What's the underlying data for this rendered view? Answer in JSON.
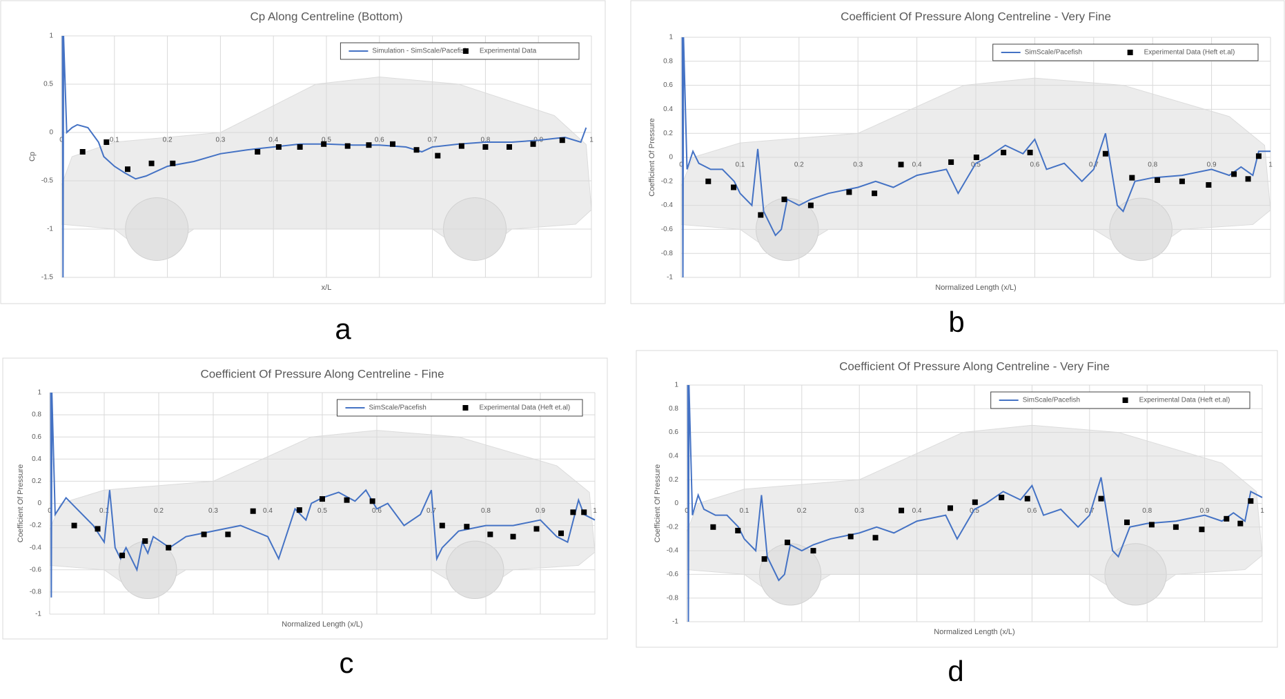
{
  "chart_data": [
    {
      "type": "line",
      "label": "a",
      "title": "Cp Along Centreline (Bottom)",
      "x_label": "x/L",
      "y_label": "Cp",
      "xlim": [
        0,
        1
      ],
      "xticks": [
        0,
        0.1,
        0.2,
        0.3,
        0.4,
        0.5,
        0.6,
        0.7,
        0.8,
        0.9,
        1
      ],
      "ylim": [
        -1.5,
        1
      ],
      "yticks": [
        -1.5,
        -1,
        -0.5,
        0,
        0.5,
        1
      ],
      "grid": true,
      "legend": "upper right",
      "series": [
        {
          "name": "Simulation - SimScale/Pacefish",
          "style": "line",
          "color": "#4472c4",
          "x": [
            0.002,
            0.003,
            0.004,
            0.01,
            0.02,
            0.03,
            0.05,
            0.07,
            0.08,
            0.1,
            0.12,
            0.14,
            0.16,
            0.2,
            0.25,
            0.3,
            0.35,
            0.4,
            0.45,
            0.5,
            0.55,
            0.6,
            0.65,
            0.68,
            0.7,
            0.75,
            0.8,
            0.85,
            0.9,
            0.95,
            0.98,
            0.99
          ],
          "values": [
            1,
            -1.5,
            1,
            0,
            0.05,
            0.08,
            0.05,
            -0.1,
            -0.25,
            -0.35,
            -0.42,
            -0.48,
            -0.45,
            -0.35,
            -0.3,
            -0.22,
            -0.18,
            -0.15,
            -0.12,
            -0.12,
            -0.13,
            -0.13,
            -0.15,
            -0.2,
            -0.15,
            -0.12,
            -0.1,
            -0.1,
            -0.08,
            -0.05,
            -0.1,
            0.05
          ]
        },
        {
          "name": "Experimental Data",
          "style": "marker",
          "color": "#000000",
          "x": [
            0.04,
            0.085,
            0.125,
            0.17,
            0.21,
            0.37,
            0.41,
            0.45,
            0.495,
            0.54,
            0.58,
            0.625,
            0.67,
            0.71,
            0.755,
            0.8,
            0.845,
            0.89,
            0.945
          ],
          "values": [
            -0.2,
            -0.1,
            -0.38,
            -0.32,
            -0.32,
            -0.2,
            -0.15,
            -0.15,
            -0.12,
            -0.14,
            -0.13,
            -0.12,
            -0.18,
            -0.24,
            -0.14,
            -0.15,
            -0.15,
            -0.12,
            -0.08
          ]
        }
      ]
    },
    {
      "type": "line",
      "label": "b",
      "title": "Coefficient Of Pressure Along Centreline - Very Fine",
      "x_label": "Normalized Length  (x/L)",
      "y_label": "Coefficient Of Pressure",
      "xlim": [
        0,
        1
      ],
      "xticks": [
        0,
        0.1,
        0.2,
        0.3,
        0.4,
        0.5,
        0.6,
        0.7,
        0.8,
        0.9,
        1
      ],
      "ylim": [
        -1,
        1
      ],
      "yticks": [
        -1,
        -0.8,
        -0.6,
        -0.4,
        -0.2,
        0,
        0.2,
        0.4,
        0.6,
        0.8,
        1
      ],
      "grid": true,
      "legend": "upper right",
      "series": [
        {
          "name": "SimScale/Pacefish",
          "style": "line",
          "color": "#4472c4",
          "x": [
            0.002,
            0.003,
            0.004,
            0.01,
            0.02,
            0.03,
            0.05,
            0.07,
            0.09,
            0.1,
            0.12,
            0.13,
            0.14,
            0.16,
            0.17,
            0.18,
            0.2,
            0.22,
            0.25,
            0.3,
            0.33,
            0.36,
            0.4,
            0.45,
            0.47,
            0.5,
            0.52,
            0.55,
            0.58,
            0.6,
            0.62,
            0.65,
            0.68,
            0.7,
            0.72,
            0.74,
            0.75,
            0.77,
            0.8,
            0.85,
            0.9,
            0.93,
            0.95,
            0.97,
            0.98,
            1
          ],
          "values": [
            1,
            -1,
            1,
            -0.1,
            0.05,
            -0.05,
            -0.1,
            -0.1,
            -0.2,
            -0.3,
            -0.4,
            0.07,
            -0.45,
            -0.65,
            -0.6,
            -0.35,
            -0.4,
            -0.35,
            -0.3,
            -0.25,
            -0.2,
            -0.25,
            -0.15,
            -0.1,
            -0.3,
            -0.05,
            0,
            0.1,
            0.03,
            0.15,
            -0.1,
            -0.05,
            -0.2,
            -0.1,
            0.2,
            -0.4,
            -0.45,
            -0.2,
            -0.17,
            -0.15,
            -0.1,
            -0.15,
            -0.08,
            -0.15,
            0.05,
            0.05
          ]
        },
        {
          "name": "Experimental Data (Heft et.al)",
          "style": "marker",
          "color": "#000000",
          "x": [
            0.046,
            0.089,
            0.135,
            0.175,
            0.22,
            0.285,
            0.328,
            0.373,
            0.458,
            0.501,
            0.547,
            0.592,
            0.72,
            0.765,
            0.808,
            0.85,
            0.895,
            0.938,
            0.962,
            0.98
          ],
          "values": [
            -0.2,
            -0.25,
            -0.48,
            -0.35,
            -0.4,
            -0.29,
            -0.3,
            -0.06,
            -0.04,
            0,
            0.04,
            0.04,
            0.03,
            -0.17,
            -0.19,
            -0.2,
            -0.23,
            -0.14,
            -0.18,
            0.01
          ]
        }
      ]
    },
    {
      "type": "line",
      "label": "c",
      "title": "Coefficient Of Pressure Along Centreline - Fine",
      "x_label": "Normalized Length  (x/L)",
      "y_label": "Coefficient Of Pressure",
      "xlim": [
        0,
        1
      ],
      "xticks": [
        0,
        0.1,
        0.2,
        0.3,
        0.4,
        0.5,
        0.6,
        0.7,
        0.8,
        0.9,
        1
      ],
      "ylim": [
        -1,
        1
      ],
      "yticks": [
        -1,
        -0.8,
        -0.6,
        -0.4,
        -0.2,
        0,
        0.2,
        0.4,
        0.6,
        0.8,
        1
      ],
      "grid": true,
      "legend": "upper right",
      "series": [
        {
          "name": "SimScale/Pacefish",
          "style": "line",
          "color": "#4472c4",
          "x": [
            0.002,
            0.003,
            0.004,
            0.01,
            0.03,
            0.05,
            0.08,
            0.1,
            0.11,
            0.12,
            0.13,
            0.14,
            0.16,
            0.17,
            0.18,
            0.19,
            0.22,
            0.25,
            0.3,
            0.35,
            0.4,
            0.42,
            0.45,
            0.47,
            0.48,
            0.5,
            0.53,
            0.56,
            0.58,
            0.6,
            0.62,
            0.65,
            0.68,
            0.7,
            0.71,
            0.72,
            0.75,
            0.8,
            0.85,
            0.9,
            0.93,
            0.95,
            0.97,
            0.98,
            1
          ],
          "values": [
            1,
            -0.85,
            1,
            -0.1,
            0.05,
            -0.05,
            -0.2,
            -0.35,
            0.12,
            -0.4,
            -0.5,
            -0.4,
            -0.6,
            -0.35,
            -0.45,
            -0.3,
            -0.4,
            -0.3,
            -0.25,
            -0.2,
            -0.3,
            -0.5,
            -0.05,
            -0.15,
            0,
            0.05,
            0.1,
            0.02,
            0.12,
            -0.05,
            0,
            -0.2,
            -0.1,
            0.12,
            -0.5,
            -0.4,
            -0.25,
            -0.2,
            -0.2,
            -0.15,
            -0.3,
            -0.35,
            0.03,
            -0.1,
            -0.15
          ]
        },
        {
          "name": "Experimental Data (Heft et.al)",
          "style": "marker",
          "color": "#000000",
          "x": [
            0.045,
            0.088,
            0.133,
            0.175,
            0.218,
            0.283,
            0.327,
            0.373,
            0.458,
            0.5,
            0.545,
            0.592,
            0.72,
            0.765,
            0.808,
            0.85,
            0.893,
            0.938,
            0.96,
            0.98
          ],
          "values": [
            -0.2,
            -0.23,
            -0.47,
            -0.34,
            -0.4,
            -0.28,
            -0.28,
            -0.07,
            -0.06,
            0.04,
            0.03,
            0.02,
            -0.2,
            -0.21,
            -0.28,
            -0.3,
            -0.23,
            -0.27,
            -0.08,
            -0.08
          ]
        }
      ]
    },
    {
      "type": "line",
      "label": "d",
      "title": "Coefficient Of Pressure Along Centreline - Very Fine",
      "x_label": "Normalized Length  (x/L)",
      "y_label": "Coefficient Of Pressure",
      "xlim": [
        0,
        1
      ],
      "xticks": [
        0,
        0.1,
        0.2,
        0.3,
        0.4,
        0.5,
        0.6,
        0.7,
        0.8,
        0.9,
        1
      ],
      "ylim": [
        -1,
        1
      ],
      "yticks": [
        -1,
        -0.8,
        -0.6,
        -0.4,
        -0.2,
        0,
        0.2,
        0.4,
        0.6,
        0.8,
        1
      ],
      "grid": true,
      "legend": "upper right",
      "series": [
        {
          "name": "SimScale/Pacefish",
          "style": "line",
          "color": "#4472c4",
          "x": [
            0.002,
            0.003,
            0.004,
            0.01,
            0.02,
            0.03,
            0.05,
            0.07,
            0.09,
            0.1,
            0.12,
            0.13,
            0.14,
            0.16,
            0.17,
            0.18,
            0.2,
            0.22,
            0.25,
            0.3,
            0.33,
            0.36,
            0.4,
            0.45,
            0.47,
            0.5,
            0.52,
            0.55,
            0.58,
            0.6,
            0.62,
            0.65,
            0.68,
            0.7,
            0.72,
            0.74,
            0.75,
            0.77,
            0.8,
            0.85,
            0.9,
            0.93,
            0.95,
            0.97,
            0.98,
            1
          ],
          "values": [
            1,
            -1,
            1,
            -0.1,
            0.07,
            -0.05,
            -0.1,
            -0.1,
            -0.2,
            -0.3,
            -0.4,
            0.07,
            -0.45,
            -0.65,
            -0.6,
            -0.35,
            -0.4,
            -0.35,
            -0.3,
            -0.25,
            -0.2,
            -0.25,
            -0.15,
            -0.1,
            -0.3,
            -0.05,
            0,
            0.1,
            0.03,
            0.15,
            -0.1,
            -0.05,
            -0.2,
            -0.1,
            0.22,
            -0.4,
            -0.45,
            -0.2,
            -0.17,
            -0.15,
            -0.1,
            -0.15,
            -0.08,
            -0.15,
            0.1,
            0.05
          ]
        },
        {
          "name": "Experimental Data (Heft et.al)",
          "style": "marker",
          "color": "#000000",
          "x": [
            0.046,
            0.089,
            0.135,
            0.175,
            0.22,
            0.285,
            0.328,
            0.373,
            0.458,
            0.501,
            0.547,
            0.592,
            0.72,
            0.765,
            0.808,
            0.85,
            0.895,
            0.938,
            0.962,
            0.98
          ],
          "values": [
            -0.2,
            -0.23,
            -0.47,
            -0.33,
            -0.4,
            -0.28,
            -0.29,
            -0.06,
            -0.04,
            0.01,
            0.05,
            0.04,
            0.04,
            -0.16,
            -0.18,
            -0.2,
            -0.22,
            -0.13,
            -0.17,
            0.02
          ]
        }
      ]
    }
  ]
}
